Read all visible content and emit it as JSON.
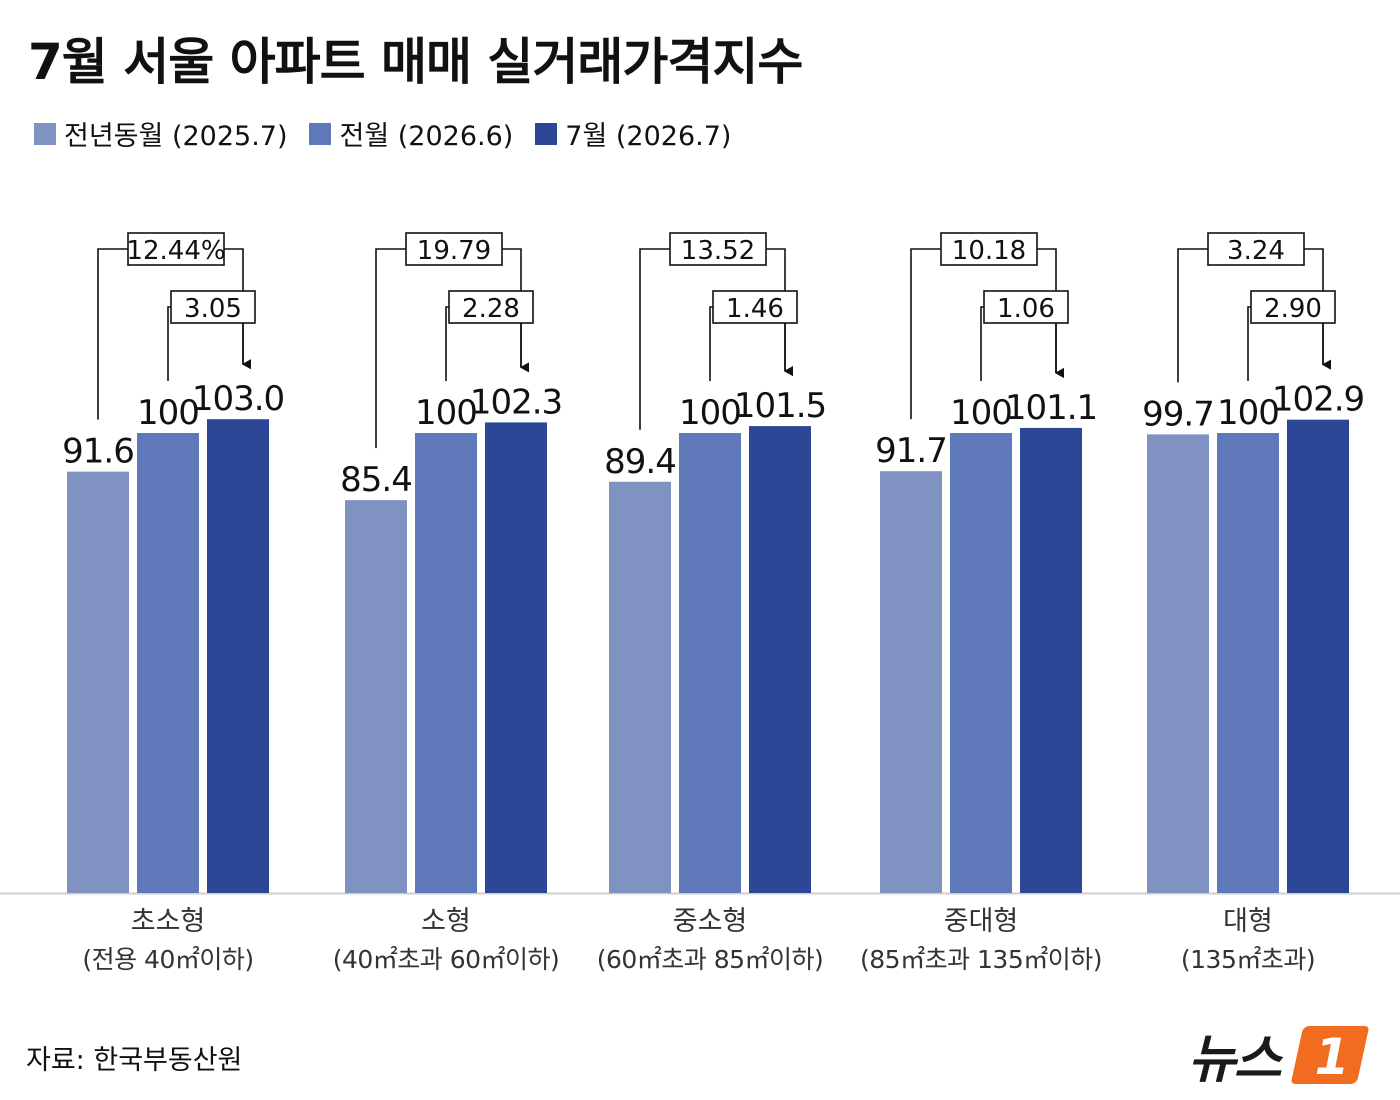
{
  "title": "7월 서울 아파트 매매 실거래가격지수",
  "legend": [
    {
      "label": "전년동월 (2025.7)",
      "color": "#7f92c1"
    },
    {
      "label": "전월 (2026.6)",
      "color": "#5f79ba"
    },
    {
      "label": "7월 (2026.7)",
      "color": "#2c4796"
    }
  ],
  "source": "자료: 한국부동산원",
  "logo": {
    "text": "뉴스",
    "mark": "1",
    "mark_color": "#f26c1f"
  },
  "chart_data": {
    "type": "bar",
    "categories": [
      {
        "name": "초소형",
        "sub": "(전용 40㎡이하)"
      },
      {
        "name": "소형",
        "sub": "(40㎡초과 60㎡이하)"
      },
      {
        "name": "중소형",
        "sub": "(60㎡초과 85㎡이하)"
      },
      {
        "name": "중대형",
        "sub": "(85㎡초과 135㎡이하)"
      },
      {
        "name": "대형",
        "sub": "(135㎡초과)"
      }
    ],
    "series": [
      {
        "name": "전년동월 (2025.7)",
        "color": "#7f92c1",
        "values": [
          91.6,
          85.4,
          89.4,
          91.7,
          99.7
        ],
        "labels": [
          "91.6",
          "85.4",
          "89.4",
          "91.7",
          "99.7"
        ]
      },
      {
        "name": "전월 (2026.6)",
        "color": "#5f79ba",
        "values": [
          100,
          100,
          100,
          100,
          100
        ],
        "labels": [
          "100",
          "100",
          "100",
          "100",
          "100"
        ]
      },
      {
        "name": "7월 (2026.7)",
        "color": "#2c4796",
        "values": [
          103.0,
          102.3,
          101.5,
          101.1,
          102.9
        ],
        "labels": [
          "103.0",
          "102.3",
          "101.5",
          "101.1",
          "102.9"
        ]
      }
    ],
    "yoy_change": [
      "12.44%",
      "19.79",
      "13.52",
      "10.18",
      "3.24"
    ],
    "mom_change": [
      "3.05",
      "2.28",
      "1.46",
      "1.06",
      "2.90"
    ],
    "grid": false
  }
}
